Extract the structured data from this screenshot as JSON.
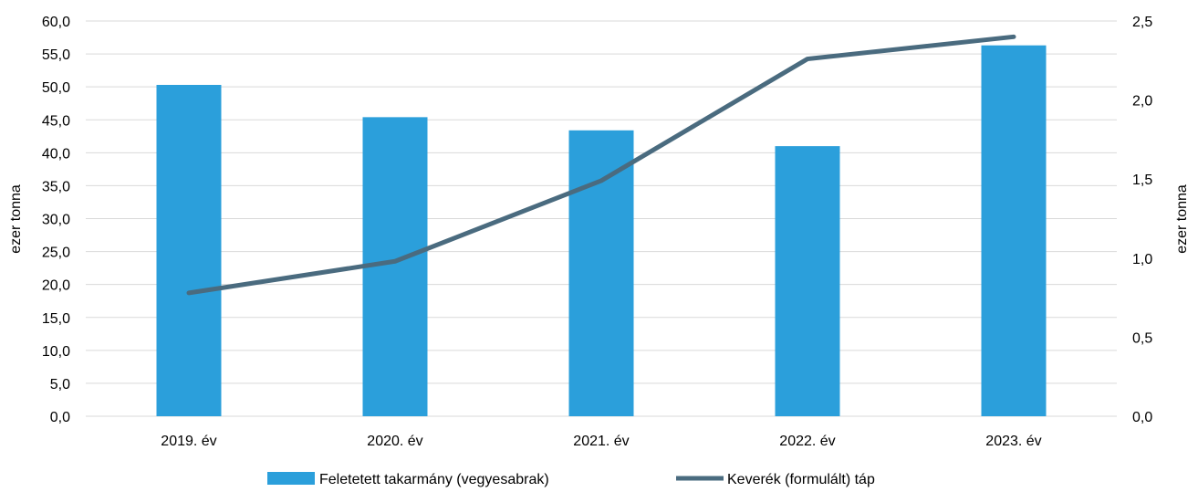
{
  "chart_data": {
    "type": "bar",
    "categories": [
      "2019. év",
      "2020. év",
      "2021. év",
      "2022. év",
      "2023. év"
    ],
    "series": [
      {
        "name": "Feletetett takarmány (vegyesabrak)",
        "type": "bar",
        "axis": "left",
        "color": "#2b9fdb",
        "values": [
          50.3,
          45.4,
          43.4,
          41.0,
          56.3
        ]
      },
      {
        "name": "Keverék (formulált) táp",
        "type": "line",
        "axis": "right",
        "color": "#4a6b7f",
        "values": [
          0.78,
          0.98,
          1.49,
          2.26,
          2.4
        ]
      }
    ],
    "y_left": {
      "label": "ezer tonna",
      "min": 0,
      "max": 60,
      "step": 5,
      "ticks": [
        "0,0",
        "5,0",
        "10,0",
        "15,0",
        "20,0",
        "25,0",
        "30,0",
        "35,0",
        "40,0",
        "45,0",
        "50,0",
        "55,0",
        "60,0"
      ]
    },
    "y_right": {
      "label": "ezer tonna",
      "min": 0,
      "max": 2.5,
      "step": 0.5,
      "ticks": [
        "0,0",
        "0,5",
        "1,0",
        "1,5",
        "2,0",
        "2,5"
      ]
    },
    "grid": true,
    "legend_position": "bottom"
  }
}
